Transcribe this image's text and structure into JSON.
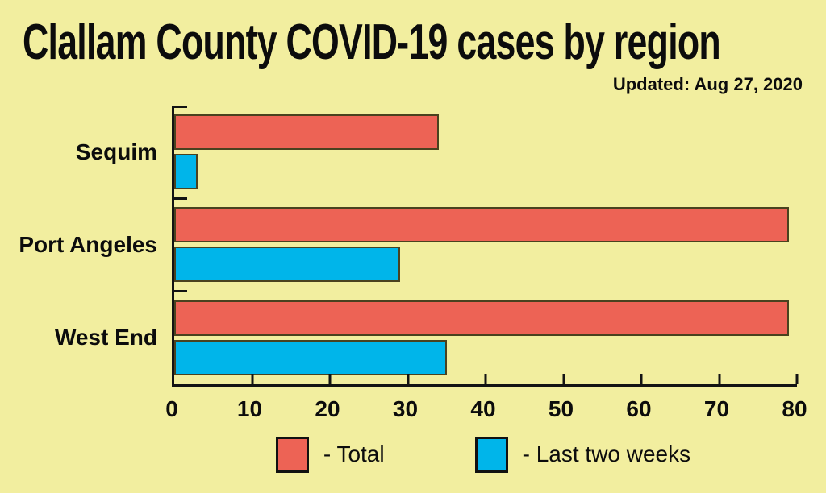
{
  "header": {
    "title": "Clallam County COVID-19 cases by region",
    "updated": "Updated: Aug 27, 2020"
  },
  "colors": {
    "background": "#f2ee9f",
    "total_bar": "#ed6355",
    "last_two_weeks_bar": "#00b5ea",
    "bar_border": "#4a421f",
    "axis": "#131313",
    "text": "#0c0c0c"
  },
  "chart_data": {
    "type": "bar",
    "orientation": "horizontal",
    "title": "Clallam County COVID-19 cases by region",
    "subtitle": "Updated: Aug 27, 2020",
    "categories": [
      "Sequim",
      "Port Angeles",
      "West End"
    ],
    "series": [
      {
        "name": "Total",
        "color": "#ed6355",
        "values": [
          34,
          79,
          79
        ]
      },
      {
        "name": "Last two weeks",
        "color": "#00b5ea",
        "values": [
          3,
          29,
          35
        ]
      }
    ],
    "xlim": [
      0,
      80
    ],
    "xticks": [
      0,
      10,
      20,
      30,
      40,
      50,
      60,
      70,
      80
    ],
    "xlabel": "",
    "ylabel": "",
    "grid": false,
    "legend_position": "bottom",
    "legend": [
      {
        "label": "- Total",
        "color": "#ed6355"
      },
      {
        "label": "- Last two weeks",
        "color": "#00b5ea"
      }
    ]
  }
}
